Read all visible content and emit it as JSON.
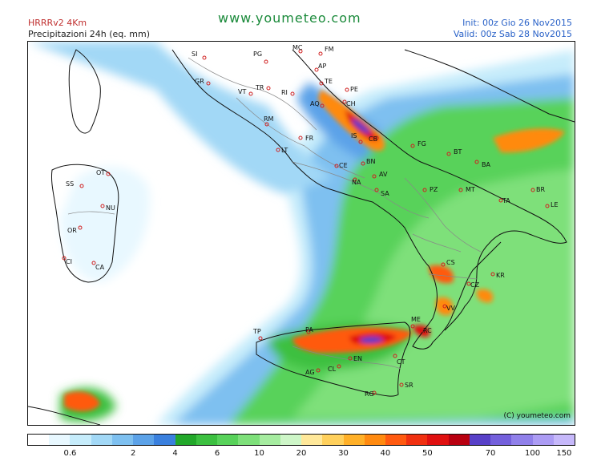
{
  "header": {
    "model": "HRRRv2  4Km",
    "product": "Precipitazioni 24h (eq. mm)",
    "site": "www.youmeteo.com",
    "init": "Init: 00z Gio   26 Nov2015",
    "valid": "Valid: 00z Sab  28 Nov2015"
  },
  "copyright": "(C) youmeteo.com",
  "legend": {
    "colors": [
      "#ffffff",
      "#e8f8ff",
      "#c6ecfb",
      "#a2d8f6",
      "#7ec0f0",
      "#5ca2e8",
      "#3a80de",
      "#22a82a",
      "#3cc040",
      "#58d25a",
      "#7ee07a",
      "#a6eca0",
      "#cef6c8",
      "#ffe89a",
      "#ffd05c",
      "#ffb028",
      "#ff8a10",
      "#ff5a10",
      "#f03010",
      "#e01010",
      "#b80010",
      "#5840c8",
      "#7460dc",
      "#9080ea",
      "#ac9cf4",
      "#c6b8fa"
    ],
    "labels": [
      "0.6",
      "2",
      "4",
      "6",
      "10",
      "20",
      "30",
      "40",
      "50",
      "70",
      "100",
      "150"
    ]
  },
  "cities": [
    {
      "code": "SI"
    },
    {
      "code": "PG"
    },
    {
      "code": "MC"
    },
    {
      "code": "FM"
    },
    {
      "code": "AP"
    },
    {
      "code": "TE"
    },
    {
      "code": "PE"
    },
    {
      "code": "GR"
    },
    {
      "code": "VT"
    },
    {
      "code": "TR"
    },
    {
      "code": "RI"
    },
    {
      "code": "AQ"
    },
    {
      "code": "CH"
    },
    {
      "code": "RM"
    },
    {
      "code": "IS"
    },
    {
      "code": "CB"
    },
    {
      "code": "FR"
    },
    {
      "code": "LT"
    },
    {
      "code": "FG"
    },
    {
      "code": "BT"
    },
    {
      "code": "CE"
    },
    {
      "code": "BN"
    },
    {
      "code": "AV"
    },
    {
      "code": "NA"
    },
    {
      "code": "SA"
    },
    {
      "code": "PZ"
    },
    {
      "code": "MT"
    },
    {
      "code": "BA"
    },
    {
      "code": "BR"
    },
    {
      "code": "TA"
    },
    {
      "code": "LE"
    },
    {
      "code": "OT"
    },
    {
      "code": "SS"
    },
    {
      "code": "NU"
    },
    {
      "code": "OR"
    },
    {
      "code": "CI"
    },
    {
      "code": "CA"
    },
    {
      "code": "CS"
    },
    {
      "code": "KR"
    },
    {
      "code": "CZ"
    },
    {
      "code": "VV"
    },
    {
      "code": "ME"
    },
    {
      "code": "RC"
    },
    {
      "code": "TP"
    },
    {
      "code": "PA"
    },
    {
      "code": "EN"
    },
    {
      "code": "CT"
    },
    {
      "code": "AG"
    },
    {
      "code": "CL"
    },
    {
      "code": "SR"
    },
    {
      "code": "RG"
    }
  ]
}
